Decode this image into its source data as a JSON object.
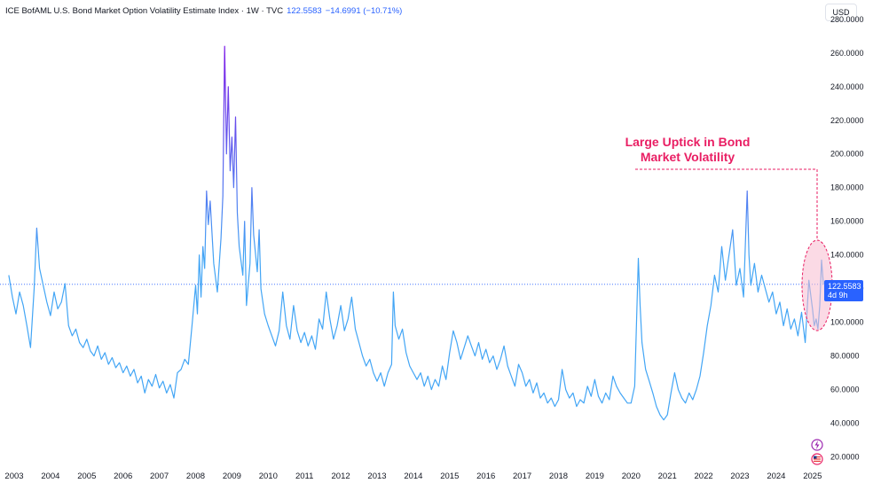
{
  "legend": {
    "title": "ICE BofAML U.S. Bond Market Option Volatility Estimate Index · 1W · TVC",
    "value": "122.5583",
    "change": "−14.6991 (−10.71%)"
  },
  "currency_button": "USD",
  "price_badge": {
    "value": "122.5583",
    "countdown": "4d 9h"
  },
  "annotation": {
    "line1": "Large Uptick in Bond",
    "line2": "Market Volatility"
  },
  "chart_data": {
    "type": "line",
    "y_ticks": [
      "20.0000",
      "40.0000",
      "60.0000",
      "80.0000",
      "100.0000",
      "120.0000",
      "140.0000",
      "160.0000",
      "180.0000",
      "200.0000",
      "220.0000",
      "240.0000",
      "260.0000",
      "280.0000"
    ],
    "x_ticks": [
      "2003",
      "2004",
      "2005",
      "2006",
      "2007",
      "2008",
      "2009",
      "2010",
      "2011",
      "2012",
      "2013",
      "2014",
      "2015",
      "2016",
      "2017",
      "2018",
      "2019",
      "2020",
      "2021",
      "2022",
      "2023",
      "2024",
      "2025"
    ],
    "ylim": [
      14,
      282
    ],
    "xlim": [
      2002.85,
      2025.5
    ],
    "last_value": 122.5583,
    "color_low": "#42a5f5",
    "color_high": "#7b1fe8",
    "series": [
      {
        "points": [
          [
            2002.85,
            128
          ],
          [
            2002.95,
            115
          ],
          [
            2003.05,
            105
          ],
          [
            2003.15,
            118
          ],
          [
            2003.25,
            110
          ],
          [
            2003.35,
            98
          ],
          [
            2003.45,
            85
          ],
          [
            2003.55,
            120
          ],
          [
            2003.62,
            156
          ],
          [
            2003.7,
            132
          ],
          [
            2003.8,
            122
          ],
          [
            2003.9,
            112
          ],
          [
            2004.0,
            104
          ],
          [
            2004.1,
            118
          ],
          [
            2004.2,
            108
          ],
          [
            2004.3,
            112
          ],
          [
            2004.4,
            123
          ],
          [
            2004.5,
            98
          ],
          [
            2004.6,
            92
          ],
          [
            2004.7,
            96
          ],
          [
            2004.8,
            88
          ],
          [
            2004.9,
            85
          ],
          [
            2005.0,
            90
          ],
          [
            2005.1,
            83
          ],
          [
            2005.2,
            80
          ],
          [
            2005.3,
            86
          ],
          [
            2005.4,
            78
          ],
          [
            2005.5,
            82
          ],
          [
            2005.6,
            75
          ],
          [
            2005.7,
            79
          ],
          [
            2005.8,
            73
          ],
          [
            2005.9,
            76
          ],
          [
            2006.0,
            70
          ],
          [
            2006.1,
            74
          ],
          [
            2006.2,
            68
          ],
          [
            2006.3,
            72
          ],
          [
            2006.4,
            64
          ],
          [
            2006.5,
            68
          ],
          [
            2006.6,
            58
          ],
          [
            2006.7,
            66
          ],
          [
            2006.8,
            62
          ],
          [
            2006.9,
            69
          ],
          [
            2007.0,
            61
          ],
          [
            2007.1,
            65
          ],
          [
            2007.2,
            58
          ],
          [
            2007.3,
            63
          ],
          [
            2007.4,
            55
          ],
          [
            2007.5,
            70
          ],
          [
            2007.6,
            72
          ],
          [
            2007.7,
            78
          ],
          [
            2007.8,
            75
          ],
          [
            2007.9,
            98
          ],
          [
            2008.0,
            122
          ],
          [
            2008.05,
            105
          ],
          [
            2008.1,
            140
          ],
          [
            2008.15,
            115
          ],
          [
            2008.2,
            145
          ],
          [
            2008.25,
            132
          ],
          [
            2008.3,
            178
          ],
          [
            2008.35,
            158
          ],
          [
            2008.4,
            172
          ],
          [
            2008.5,
            135
          ],
          [
            2008.6,
            118
          ],
          [
            2008.7,
            150
          ],
          [
            2008.75,
            175
          ],
          [
            2008.8,
            264
          ],
          [
            2008.85,
            200
          ],
          [
            2008.9,
            240
          ],
          [
            2008.95,
            190
          ],
          [
            2009.0,
            210
          ],
          [
            2009.05,
            180
          ],
          [
            2009.1,
            222
          ],
          [
            2009.15,
            165
          ],
          [
            2009.2,
            145
          ],
          [
            2009.3,
            128
          ],
          [
            2009.35,
            160
          ],
          [
            2009.4,
            110
          ],
          [
            2009.5,
            135
          ],
          [
            2009.55,
            180
          ],
          [
            2009.6,
            152
          ],
          [
            2009.7,
            130
          ],
          [
            2009.75,
            155
          ],
          [
            2009.8,
            120
          ],
          [
            2009.9,
            105
          ],
          [
            2010.0,
            98
          ],
          [
            2010.1,
            92
          ],
          [
            2010.2,
            86
          ],
          [
            2010.3,
            95
          ],
          [
            2010.4,
            118
          ],
          [
            2010.5,
            98
          ],
          [
            2010.6,
            90
          ],
          [
            2010.7,
            110
          ],
          [
            2010.8,
            95
          ],
          [
            2010.9,
            88
          ],
          [
            2011.0,
            94
          ],
          [
            2011.1,
            86
          ],
          [
            2011.2,
            92
          ],
          [
            2011.3,
            84
          ],
          [
            2011.4,
            102
          ],
          [
            2011.5,
            96
          ],
          [
            2011.6,
            118
          ],
          [
            2011.7,
            102
          ],
          [
            2011.8,
            90
          ],
          [
            2011.9,
            98
          ],
          [
            2012.0,
            110
          ],
          [
            2012.1,
            95
          ],
          [
            2012.2,
            102
          ],
          [
            2012.3,
            115
          ],
          [
            2012.4,
            96
          ],
          [
            2012.5,
            88
          ],
          [
            2012.6,
            80
          ],
          [
            2012.7,
            74
          ],
          [
            2012.8,
            78
          ],
          [
            2012.9,
            70
          ],
          [
            2013.0,
            65
          ],
          [
            2013.1,
            70
          ],
          [
            2013.2,
            62
          ],
          [
            2013.3,
            70
          ],
          [
            2013.4,
            75
          ],
          [
            2013.45,
            118
          ],
          [
            2013.5,
            98
          ],
          [
            2013.6,
            90
          ],
          [
            2013.7,
            96
          ],
          [
            2013.8,
            82
          ],
          [
            2013.9,
            74
          ],
          [
            2014.0,
            70
          ],
          [
            2014.1,
            66
          ],
          [
            2014.2,
            70
          ],
          [
            2014.3,
            62
          ],
          [
            2014.4,
            68
          ],
          [
            2014.5,
            60
          ],
          [
            2014.6,
            66
          ],
          [
            2014.7,
            62
          ],
          [
            2014.8,
            74
          ],
          [
            2014.9,
            66
          ],
          [
            2015.0,
            82
          ],
          [
            2015.1,
            95
          ],
          [
            2015.2,
            88
          ],
          [
            2015.3,
            78
          ],
          [
            2015.4,
            85
          ],
          [
            2015.5,
            92
          ],
          [
            2015.6,
            86
          ],
          [
            2015.7,
            80
          ],
          [
            2015.8,
            88
          ],
          [
            2015.9,
            78
          ],
          [
            2016.0,
            84
          ],
          [
            2016.1,
            76
          ],
          [
            2016.2,
            80
          ],
          [
            2016.3,
            72
          ],
          [
            2016.4,
            78
          ],
          [
            2016.5,
            86
          ],
          [
            2016.6,
            74
          ],
          [
            2016.7,
            68
          ],
          [
            2016.8,
            62
          ],
          [
            2016.9,
            75
          ],
          [
            2017.0,
            70
          ],
          [
            2017.1,
            62
          ],
          [
            2017.2,
            66
          ],
          [
            2017.3,
            58
          ],
          [
            2017.4,
            64
          ],
          [
            2017.5,
            55
          ],
          [
            2017.6,
            58
          ],
          [
            2017.7,
            52
          ],
          [
            2017.8,
            55
          ],
          [
            2017.9,
            50
          ],
          [
            2018.0,
            54
          ],
          [
            2018.1,
            72
          ],
          [
            2018.2,
            60
          ],
          [
            2018.3,
            55
          ],
          [
            2018.4,
            58
          ],
          [
            2018.5,
            50
          ],
          [
            2018.6,
            54
          ],
          [
            2018.7,
            52
          ],
          [
            2018.8,
            62
          ],
          [
            2018.9,
            56
          ],
          [
            2019.0,
            66
          ],
          [
            2019.1,
            56
          ],
          [
            2019.2,
            52
          ],
          [
            2019.3,
            58
          ],
          [
            2019.4,
            54
          ],
          [
            2019.5,
            68
          ],
          [
            2019.6,
            62
          ],
          [
            2019.7,
            58
          ],
          [
            2019.8,
            55
          ],
          [
            2019.9,
            52
          ],
          [
            2020.0,
            52
          ],
          [
            2020.1,
            62
          ],
          [
            2020.2,
            138
          ],
          [
            2020.25,
            110
          ],
          [
            2020.3,
            88
          ],
          [
            2020.4,
            72
          ],
          [
            2020.5,
            65
          ],
          [
            2020.6,
            58
          ],
          [
            2020.7,
            50
          ],
          [
            2020.8,
            45
          ],
          [
            2020.9,
            42
          ],
          [
            2021.0,
            45
          ],
          [
            2021.1,
            58
          ],
          [
            2021.2,
            70
          ],
          [
            2021.3,
            60
          ],
          [
            2021.4,
            55
          ],
          [
            2021.5,
            52
          ],
          [
            2021.6,
            58
          ],
          [
            2021.7,
            54
          ],
          [
            2021.8,
            60
          ],
          [
            2021.9,
            68
          ],
          [
            2022.0,
            82
          ],
          [
            2022.1,
            98
          ],
          [
            2022.2,
            110
          ],
          [
            2022.3,
            128
          ],
          [
            2022.4,
            118
          ],
          [
            2022.5,
            145
          ],
          [
            2022.6,
            125
          ],
          [
            2022.7,
            140
          ],
          [
            2022.8,
            155
          ],
          [
            2022.9,
            122
          ],
          [
            2023.0,
            132
          ],
          [
            2023.1,
            115
          ],
          [
            2023.2,
            178
          ],
          [
            2023.25,
            140
          ],
          [
            2023.3,
            122
          ],
          [
            2023.4,
            135
          ],
          [
            2023.5,
            118
          ],
          [
            2023.6,
            128
          ],
          [
            2023.7,
            120
          ],
          [
            2023.8,
            112
          ],
          [
            2023.9,
            118
          ],
          [
            2024.0,
            105
          ],
          [
            2024.1,
            112
          ],
          [
            2024.2,
            98
          ],
          [
            2024.3,
            108
          ],
          [
            2024.4,
            96
          ],
          [
            2024.5,
            102
          ],
          [
            2024.6,
            92
          ],
          [
            2024.7,
            106
          ],
          [
            2024.8,
            88
          ],
          [
            2024.9,
            125
          ],
          [
            2025.0,
            108
          ],
          [
            2025.05,
            98
          ],
          [
            2025.1,
            102
          ],
          [
            2025.15,
            96
          ],
          [
            2025.2,
            110
          ],
          [
            2025.25,
            137
          ],
          [
            2025.3,
            122.5583
          ]
        ]
      }
    ]
  }
}
